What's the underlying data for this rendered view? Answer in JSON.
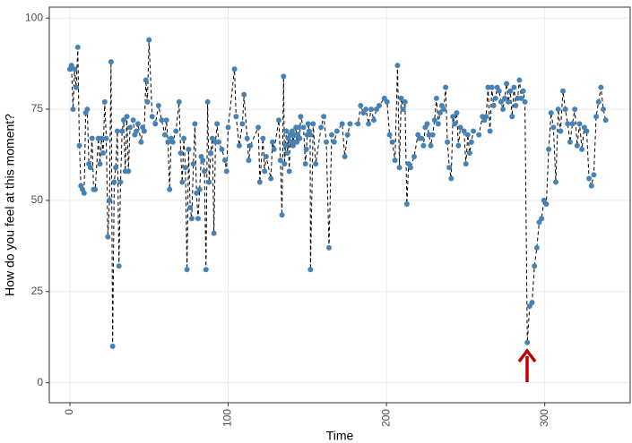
{
  "chart_data": {
    "type": "line",
    "x_label": "Time",
    "y_label": "How do you feel at this moment?",
    "color": "#4682b4",
    "line_color": "#000000",
    "grid": true,
    "xlim": [
      -13,
      354
    ],
    "ylim": [
      -5.5,
      103
    ],
    "xticks": [
      0,
      100,
      200,
      300
    ],
    "yticks": [
      0,
      25,
      50,
      75,
      100
    ],
    "x": [
      0,
      1,
      2,
      3,
      4,
      5,
      6,
      7,
      8,
      9,
      10,
      11,
      12,
      13,
      14,
      15,
      16,
      18,
      19,
      20,
      21,
      22,
      23,
      24,
      25,
      26,
      27,
      28,
      29,
      30,
      31,
      32,
      33,
      34,
      35,
      36,
      37,
      38,
      40,
      41,
      42,
      43,
      45,
      46,
      47,
      48,
      49,
      50,
      52,
      54,
      56,
      58,
      60,
      61,
      62,
      63,
      64,
      65,
      67,
      69,
      70,
      71,
      72,
      73,
      74,
      75,
      76,
      77,
      78,
      79,
      80,
      81,
      82,
      83,
      84,
      85,
      86,
      87,
      88,
      89,
      90,
      91,
      92,
      93,
      94,
      96,
      98,
      99,
      100,
      104,
      105,
      107,
      109,
      110,
      112,
      113,
      114,
      119,
      120,
      122,
      123,
      124,
      127,
      128,
      129,
      132,
      133,
      134,
      135,
      135.6,
      136.2,
      136.8,
      137.4,
      138,
      138.6,
      139.2,
      139.8,
      140.4,
      141,
      141.6,
      142.2,
      142.8,
      143.4,
      144,
      144.6,
      145.2,
      145.8,
      147.6,
      148.8,
      149.4,
      150,
      150.6,
      151.2,
      151.8,
      152,
      153.7,
      155.3,
      158.7,
      160.4,
      162,
      163.7,
      165.4,
      167,
      168.7,
      172,
      173.7,
      175.4,
      177,
      182,
      183.7,
      185.4,
      187,
      188.7,
      190.4,
      192,
      193.7,
      195.4,
      198.7,
      200.4,
      202,
      203.7,
      205.4,
      207,
      208.2,
      209.3,
      210.5,
      211.7,
      212.9,
      214,
      215.2,
      217.5,
      219.9,
      221,
      222.2,
      223.4,
      224.5,
      225.7,
      226.9,
      228,
      229.2,
      230.4,
      231.6,
      232.7,
      233.9,
      235,
      236.2,
      237.4,
      238.5,
      239.7,
      240.9,
      242,
      243.2,
      244.4,
      245.5,
      246.7,
      249,
      250.2,
      251.4,
      252.5,
      253.7,
      254.9,
      258.4,
      260.7,
      261.9,
      263,
      264.2,
      265.4,
      266.6,
      267.7,
      268.9,
      270,
      271.2,
      272.4,
      273.6,
      274.7,
      275.9,
      277,
      278.2,
      279.4,
      280.6,
      281.7,
      282.9,
      284,
      285.2,
      286.4,
      287.5,
      289,
      290.5,
      292,
      293.5,
      295,
      296.5,
      298,
      299.5,
      301,
      302.5,
      304,
      305.5,
      307,
      308.5,
      310,
      311.5,
      313,
      314.5,
      316,
      317.5,
      319,
      320.5,
      322,
      323.5,
      325,
      326.5,
      328,
      329.5,
      331,
      332.5,
      334,
      335.5,
      337,
      338.5
    ],
    "values": [
      86,
      87,
      75,
      86,
      81,
      92,
      65,
      54,
      53,
      52,
      74,
      75,
      60,
      59,
      67,
      53,
      53,
      67,
      60,
      67,
      63,
      77,
      67,
      40,
      50,
      88,
      10,
      55,
      59,
      69,
      32,
      55,
      69,
      72,
      58,
      73,
      58,
      70,
      72,
      68,
      69,
      71,
      66,
      70,
      69,
      83,
      77,
      94,
      73,
      71,
      76,
      72,
      68,
      72,
      66,
      53,
      67,
      66,
      69,
      77,
      63,
      55,
      67,
      59,
      31,
      64,
      48,
      45,
      60,
      71,
      52,
      45,
      53,
      62,
      61,
      58,
      31,
      77,
      55,
      63,
      67,
      41,
      66,
      71,
      66,
      64,
      61,
      58,
      70,
      86,
      73,
      65,
      71,
      79,
      67,
      61,
      65,
      70,
      55,
      67,
      58,
      62,
      56,
      66,
      64,
      72,
      61,
      46,
      84,
      60,
      65,
      69,
      63,
      67,
      58,
      68,
      66,
      69,
      65,
      68,
      66,
      70,
      66,
      68,
      70,
      67,
      73,
      70,
      60,
      64,
      68,
      71,
      69,
      68,
      31,
      71,
      60,
      70,
      73,
      66,
      37,
      68,
      66,
      69,
      71,
      62,
      68,
      71,
      71,
      76,
      74,
      75,
      71,
      75,
      72,
      75,
      76,
      78,
      77,
      68,
      66,
      61,
      87,
      59,
      78,
      75,
      77,
      49,
      60,
      59,
      62,
      68,
      67,
      67,
      65,
      70,
      71,
      68,
      65,
      68,
      72,
      78,
      71,
      74,
      76,
      75,
      81,
      66,
      59,
      56,
      73,
      71,
      74,
      65,
      70,
      69,
      60,
      68,
      63,
      66,
      69,
      68,
      73,
      72,
      73,
      81,
      69,
      81,
      76,
      78,
      81,
      80,
      77,
      75,
      78,
      82,
      77,
      80,
      73,
      81,
      76,
      78,
      83,
      78,
      80,
      77,
      11,
      21,
      22,
      32,
      37,
      44,
      45,
      50,
      49,
      64,
      74,
      70,
      55,
      75,
      69,
      80,
      75,
      71,
      66,
      71,
      75,
      65,
      71,
      64,
      70,
      69,
      56,
      54,
      57,
      73,
      77,
      81,
      75,
      72
    ]
  }
}
